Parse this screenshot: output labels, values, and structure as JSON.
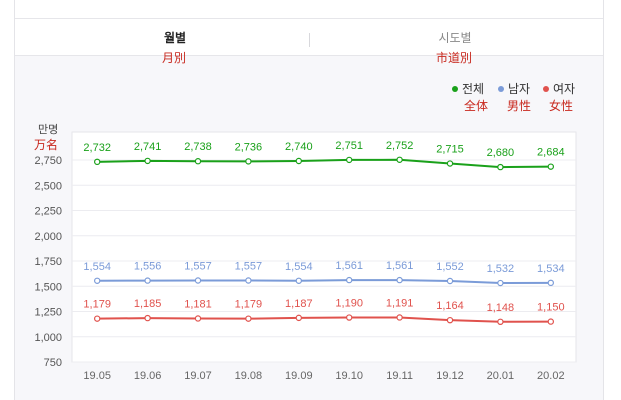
{
  "tabs": {
    "monthly": "월별",
    "monthly_sub": "月別",
    "region": "시도별",
    "region_sub": "市道別"
  },
  "legend": {
    "total": "전체",
    "total_sub": "全体",
    "male": "남자",
    "male_sub": "男性",
    "female": "여자",
    "female_sub": "女性"
  },
  "unit": {
    "label": "만명",
    "sub": "万名"
  },
  "colors": {
    "total": "#1aa11a",
    "male": "#7b9bd8",
    "female": "#e0524d"
  },
  "chart_data": {
    "type": "line",
    "categories": [
      "19.05",
      "19.06",
      "19.07",
      "19.08",
      "19.09",
      "19.10",
      "19.11",
      "19.12",
      "20.01",
      "20.02"
    ],
    "series": [
      {
        "name": "전체",
        "values": [
          2732,
          2741,
          2738,
          2736,
          2740,
          2751,
          2752,
          2715,
          2680,
          2684
        ],
        "labels": [
          "2,732",
          "2,741",
          "2,738",
          "2,736",
          "2,740",
          "2,751",
          "2,752",
          "2,715",
          "2,680",
          "2,684"
        ]
      },
      {
        "name": "남자",
        "values": [
          1554,
          1556,
          1557,
          1557,
          1554,
          1561,
          1561,
          1552,
          1532,
          1534
        ],
        "labels": [
          "1,554",
          "1,556",
          "1,557",
          "1,557",
          "1,554",
          "1,561",
          "1,561",
          "1,552",
          "1,532",
          "1,534"
        ]
      },
      {
        "name": "여자",
        "values": [
          1179,
          1185,
          1181,
          1179,
          1187,
          1190,
          1191,
          1164,
          1148,
          1150
        ],
        "labels": [
          "1,179",
          "1,185",
          "1,181",
          "1,179",
          "1,187",
          "1,190",
          "1,191",
          "1,164",
          "1,148",
          "1,150"
        ]
      }
    ],
    "ylim": [
      750,
      2750
    ],
    "yticks": [
      750,
      1000,
      1250,
      1500,
      1750,
      2000,
      2250,
      2500,
      2750
    ],
    "ytick_labels": [
      "750",
      "1,000",
      "1,250",
      "1,500",
      "1,750",
      "2,000",
      "2,250",
      "2,500",
      "2,750"
    ],
    "grid": true,
    "legend_position": "top-right"
  }
}
